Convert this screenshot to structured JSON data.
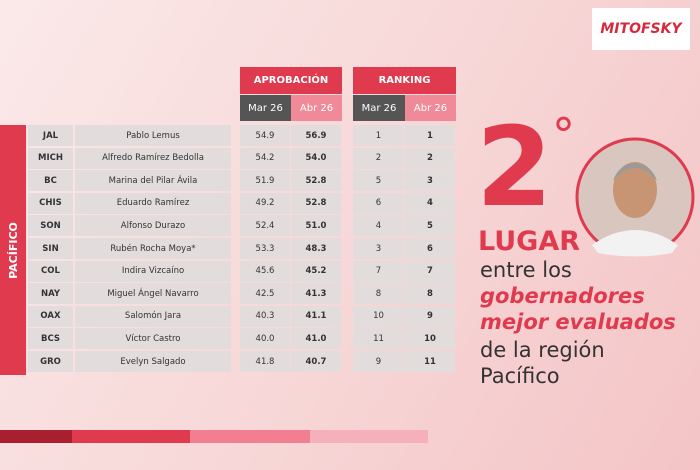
{
  "logo": "MITOFSKY",
  "table": {
    "region": "PACÍFICO",
    "groups": [
      "APROBACIÓN",
      "RANKING"
    ],
    "subheaders": [
      "Mar 26",
      "Abr 26",
      "Mar 26",
      "Abr 26"
    ],
    "rows": [
      [
        "JAL",
        "Pablo Lemus",
        "54.9",
        "56.9",
        "1",
        "1"
      ],
      [
        "MICH",
        "Alfredo Ramírez Bedolla",
        "54.2",
        "54.0",
        "2",
        "2"
      ],
      [
        "BC",
        "Marina del Pilar Ávila",
        "51.9",
        "52.8",
        "5",
        "3"
      ],
      [
        "CHIS",
        "Eduardo Ramírez",
        "49.2",
        "52.8",
        "6",
        "4"
      ],
      [
        "SON",
        "Alfonso Durazo",
        "52.4",
        "51.0",
        "4",
        "5"
      ],
      [
        "SIN",
        "Rubén Rocha Moya*",
        "53.3",
        "48.3",
        "3",
        "6"
      ],
      [
        "COL",
        "Indira Vizcaíno",
        "45.6",
        "45.2",
        "7",
        "7"
      ],
      [
        "NAY",
        "Miguel Ángel Navarro",
        "42.5",
        "41.3",
        "8",
        "8"
      ],
      [
        "OAX",
        "Salomón Jara",
        "40.3",
        "41.1",
        "10",
        "9"
      ],
      [
        "BCS",
        "Víctor Castro",
        "40.0",
        "41.0",
        "11",
        "10"
      ],
      [
        "GRO",
        "Evelyn Salgado",
        "41.8",
        "40.7",
        "9",
        "11"
      ]
    ]
  },
  "headline": {
    "place": "2",
    "degree": "°",
    "word": "LUGAR",
    "lines": [
      "entre los",
      "gobernadores",
      "mejor evaluados",
      "de la región",
      "Pacífico"
    ]
  }
}
